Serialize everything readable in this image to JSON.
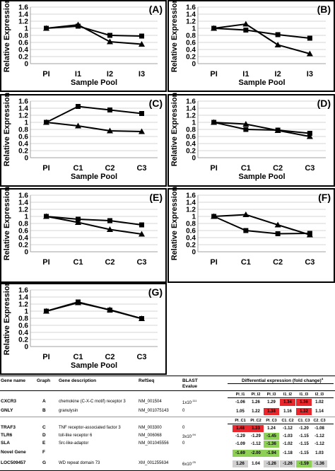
{
  "chart_data": [
    {
      "type": "line",
      "panel_label": "(A)",
      "categories": [
        "PI",
        "I1",
        "I2",
        "I3"
      ],
      "ylabel": "Relative Expression",
      "xlabel": "Sample Pool",
      "ylim": [
        0,
        1.6
      ],
      "yticks": [
        "0",
        "0.2",
        "0.4",
        "0.6",
        "0.8",
        "1",
        "1.2",
        "1.4",
        "1.6"
      ],
      "grid": true,
      "series": [
        {
          "marker": "square",
          "values": [
            1.0,
            1.06,
            0.8,
            0.78
          ]
        },
        {
          "marker": "triangle",
          "values": [
            1.0,
            1.1,
            0.62,
            0.55
          ]
        }
      ]
    },
    {
      "type": "line",
      "panel_label": "(B)",
      "categories": [
        "PI",
        "I1",
        "I2",
        "I3"
      ],
      "ylabel": "Relative Expression",
      "xlabel": "Sample Pool",
      "ylim": [
        0,
        1.6
      ],
      "yticks": [
        "0",
        "0.2",
        "0.4",
        "0.6",
        "0.8",
        "1",
        "1.2",
        "1.4",
        "1.6"
      ],
      "grid": true,
      "series": [
        {
          "marker": "square",
          "values": [
            1.0,
            0.95,
            0.82,
            0.72
          ]
        },
        {
          "marker": "triangle",
          "values": [
            1.0,
            1.12,
            0.53,
            0.28
          ]
        }
      ]
    },
    {
      "type": "line",
      "panel_label": "(C)",
      "categories": [
        "PI",
        "C1",
        "C2",
        "C3"
      ],
      "ylabel": "Relative Expression",
      "xlabel": "Sample Pool",
      "ylim": [
        0,
        1.6
      ],
      "yticks": [
        "0",
        "0.2",
        "0.4",
        "0.6",
        "0.8",
        "1",
        "1.2",
        "1.4",
        "1.6"
      ],
      "grid": true,
      "series": [
        {
          "marker": "square",
          "values": [
            1.0,
            1.45,
            1.35,
            1.25
          ]
        },
        {
          "marker": "triangle",
          "values": [
            1.0,
            0.9,
            0.76,
            0.74
          ]
        }
      ]
    },
    {
      "type": "line",
      "panel_label": "(D)",
      "categories": [
        "PI",
        "C1",
        "C2",
        "C3"
      ],
      "ylabel": "Relative Expression",
      "xlabel": "Sample Pool",
      "ylim": [
        0,
        1.6
      ],
      "yticks": [
        "0",
        "0.2",
        "0.4",
        "0.6",
        "0.8",
        "1",
        "1.2",
        "1.4",
        "1.6"
      ],
      "grid": true,
      "series": [
        {
          "marker": "square",
          "values": [
            1.0,
            0.8,
            0.78,
            0.69
          ]
        },
        {
          "marker": "triangle",
          "values": [
            1.0,
            0.95,
            0.77,
            0.6
          ]
        }
      ]
    },
    {
      "type": "line",
      "panel_label": "(E)",
      "categories": [
        "PI",
        "C1",
        "C2",
        "C3"
      ],
      "ylabel": "Relative Expression",
      "xlabel": "",
      "ylim": [
        0,
        1.6
      ],
      "yticks": [
        "0",
        "0.2",
        "0.4",
        "0.6",
        "0.8",
        "1",
        "1.2",
        "1.4",
        "1.6"
      ],
      "grid": true,
      "series": [
        {
          "marker": "square",
          "values": [
            1.0,
            0.92,
            0.88,
            0.76
          ]
        },
        {
          "marker": "triangle",
          "values": [
            1.0,
            0.83,
            0.63,
            0.5
          ]
        }
      ]
    },
    {
      "type": "line",
      "panel_label": "(F)",
      "categories": [
        "PI",
        "C1",
        "C2",
        "C3"
      ],
      "ylabel": "Relative Expression",
      "xlabel": "",
      "ylim": [
        0,
        1.6
      ],
      "yticks": [
        "0",
        "0.2",
        "0.4",
        "0.6",
        "0.8",
        "1",
        "1.2",
        "1.4",
        "1.6"
      ],
      "grid": true,
      "series": [
        {
          "marker": "square",
          "values": [
            1.0,
            0.6,
            0.51,
            0.52
          ]
        },
        {
          "marker": "triangle",
          "values": [
            1.0,
            1.05,
            0.76,
            0.48
          ]
        }
      ]
    },
    {
      "type": "line",
      "panel_label": "(G)",
      "categories": [
        "PI",
        "C1",
        "C2",
        "C3"
      ],
      "ylabel": "Relative Expression",
      "xlabel": "Sample Pool",
      "ylim": [
        0,
        1.6
      ],
      "yticks": [
        "0",
        "0.2",
        "0.4",
        "0.6",
        "0.8",
        "1",
        "1.2",
        "1.4",
        "1.6"
      ],
      "grid": true,
      "series": [
        {
          "marker": "square",
          "values": [
            1.0,
            1.26,
            1.03,
            0.79
          ]
        },
        {
          "marker": "triangle",
          "values": [
            1.0,
            1.24,
            1.04,
            0.79
          ]
        }
      ]
    }
  ],
  "table": {
    "headers": {
      "gene_name": "Gene name",
      "graph": "Graph",
      "gene_desc": "Gene description",
      "refseq": "RefSeq",
      "blast1": "BLAST",
      "blast2": "Evalue",
      "diff": "Differential expression (fold change)",
      "diff_sup": "a"
    },
    "sub1": [
      "PI_I1",
      "PI_I2",
      "PI_I3",
      "I1_I2",
      "I1_I3",
      "I2_I3"
    ],
    "sub2": [
      "PI_C1",
      "PI_C2",
      "PI_C3",
      "C1_C2",
      "C1_C3",
      "C2_C3"
    ],
    "rows": [
      {
        "name": "CXCR3",
        "graph": "A",
        "desc": "chemokine (C-X-C motif) receptor 3",
        "refseq": "NM_001504",
        "blast": "1x10",
        "blast_sup": "-111",
        "values": [
          "-1.06",
          "1.26",
          "1.29",
          "1.34",
          "1.36",
          "1.02"
        ],
        "colors": [
          "",
          "",
          "",
          "#e8262b",
          "#e8262b",
          ""
        ]
      },
      {
        "name": "GNLY",
        "graph": "B",
        "desc": "granulysin",
        "refseq": "NM_001075143",
        "blast": "0",
        "blast_sup": "",
        "values": [
          "1.05",
          "1.22",
          "1.38",
          "1.16",
          "1.32",
          "1.14"
        ],
        "colors": [
          "",
          "",
          "#e8262b",
          "",
          "#e8262b",
          ""
        ]
      },
      {
        "name": "TRAF3",
        "graph": "C",
        "desc": "TNF receptor-associated factor 3",
        "refseq": "NM_003300",
        "blast": "0",
        "blast_sup": "",
        "values": [
          "1.48",
          "1.33",
          "1.24",
          "-1.12",
          "-1.20",
          "-1.08"
        ],
        "colors": [
          "#e8262b",
          "#e8262b",
          "",
          "",
          "",
          ""
        ]
      },
      {
        "name": "TLR6",
        "graph": "D",
        "desc": "toll-like receptor 6",
        "refseq": "NM_006068",
        "blast": "3x10",
        "blast_sup": "-94",
        "values": [
          "-1.29",
          "-1.29",
          "-1.45",
          "-1.03",
          "-1.15",
          "-1.12"
        ],
        "colors": [
          "",
          "",
          "#8ecf56",
          "",
          "",
          ""
        ]
      },
      {
        "name": "SLA",
        "graph": "E",
        "desc": "Src-like-adaptor",
        "refseq": "NM_001045556",
        "blast": "0",
        "blast_sup": "",
        "values": [
          "-1.09",
          "-1.12",
          "-1.36",
          "-1.02",
          "-1.15",
          "-1.12"
        ],
        "colors": [
          "",
          "",
          "#8ecf56",
          "",
          "",
          ""
        ]
      },
      {
        "name": "Novel Gene",
        "graph": "F",
        "desc": "",
        "refseq": "",
        "blast": "",
        "blast_sup": "",
        "values": [
          "-1.69",
          "-2.00",
          "-1.94",
          "-1.18",
          "-1.15",
          "1.03"
        ],
        "colors": [
          "#8ecf56",
          "#8ecf56",
          "#8ecf56",
          "",
          "",
          ""
        ]
      },
      {
        "name": "LOC509457",
        "graph": "G",
        "desc": "WD repeat domain 73",
        "refseq": "XM_001255634",
        "blast": "6x10",
        "blast_sup": "-25",
        "values": [
          "1.26",
          "1.04",
          "-1.26",
          "-1.26",
          "-1.59",
          "-1.36"
        ],
        "colors": [
          "#d0d0d0",
          "",
          "#d0d0d0",
          "#d0d0d0",
          "#8ecf56",
          "#d0d0d0"
        ]
      }
    ]
  }
}
